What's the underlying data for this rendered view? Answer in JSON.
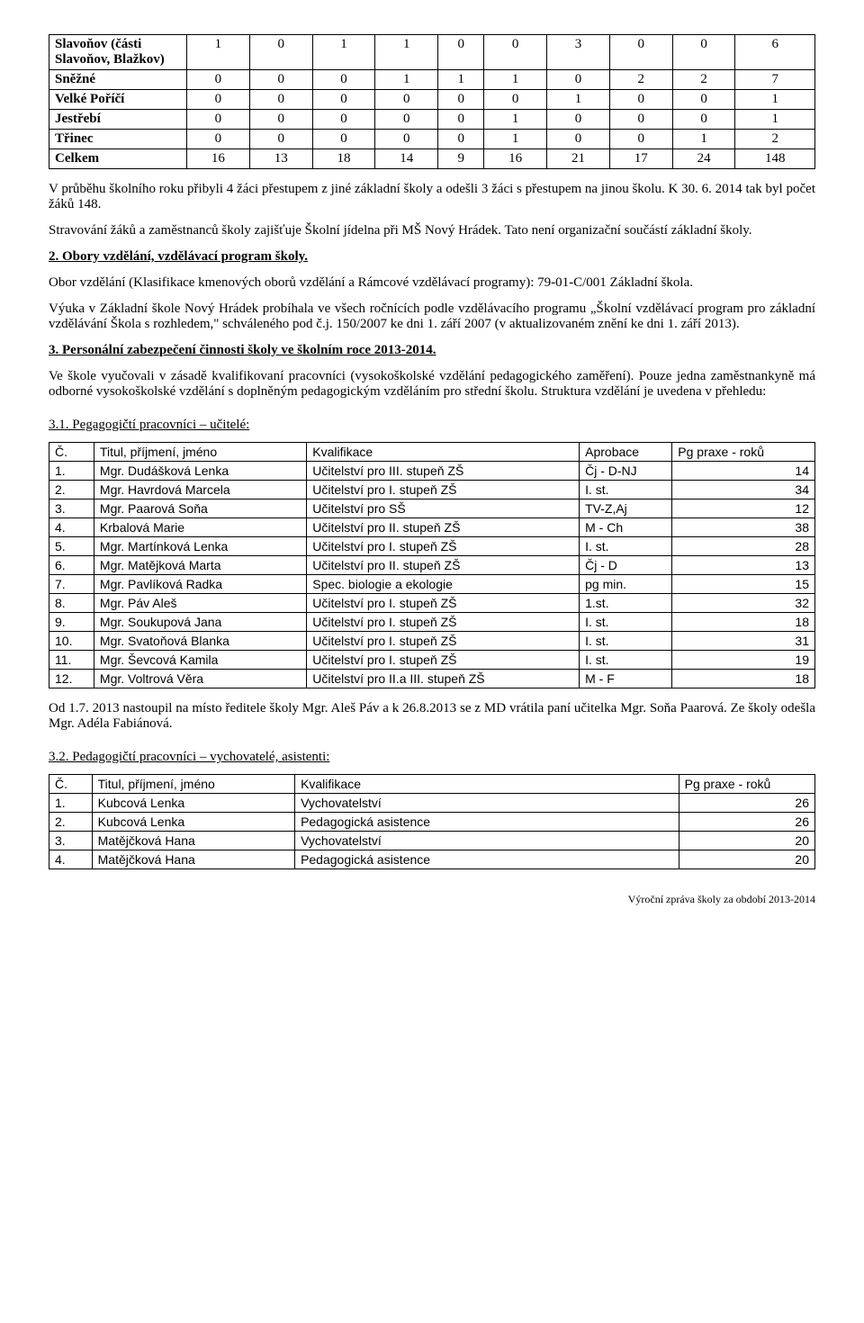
{
  "table1": {
    "rows": [
      {
        "label": "Slavoňov (části\nSlavoňov, Blažkov)",
        "bold": true,
        "vals": [
          1,
          0,
          1,
          1,
          0,
          0,
          3,
          0,
          0,
          6
        ]
      },
      {
        "label": "Sněžné",
        "bold": true,
        "vals": [
          0,
          0,
          0,
          1,
          1,
          1,
          0,
          2,
          2,
          7
        ]
      },
      {
        "label": "Velké Poříčí",
        "bold": true,
        "vals": [
          0,
          0,
          0,
          0,
          0,
          0,
          1,
          0,
          0,
          1
        ]
      },
      {
        "label": "Jestřebí",
        "bold": true,
        "vals": [
          0,
          0,
          0,
          0,
          0,
          1,
          0,
          0,
          0,
          1
        ]
      },
      {
        "label": "Třinec",
        "bold": true,
        "vals": [
          0,
          0,
          0,
          0,
          0,
          1,
          0,
          0,
          1,
          2
        ]
      },
      {
        "label": "Celkem",
        "bold": true,
        "vals": [
          16,
          13,
          18,
          14,
          9,
          16,
          21,
          17,
          24,
          148
        ]
      }
    ]
  },
  "para1": "V průběhu školního roku přibyli 4 žáci přestupem z jiné základní školy a odešli 3 žáci s přestupem na jinou školu.  K 30. 6. 2014 tak byl počet žáků 148.",
  "para2": "Stravování žáků a zaměstnanců školy zajišťuje Školní jídelna při MŠ Nový Hrádek. Tato není organizační součástí základní školy.",
  "heading2": "2. Obory vzdělání, vzdělávací program školy.",
  "para3": "Obor vzdělání (Klasifikace kmenových oborů vzdělání a Rámcové vzdělávací programy): 79-01-C/001 Základní škola.",
  "para4": "Výuka v Základní škole Nový Hrádek probíhala ve všech ročnících podle vzdělávacího programu „Školní vzdělávací program pro základní vzdělávání Škola s rozhledem,\" schváleného pod č.j. 150/2007 ke dni 1. září 2007 (v aktualizovaném  znění ke dni 1. září 2013).",
  "heading3": "3. Personální zabezpečení činnosti školy ve školním roce 2013-2014.",
  "para5": "Ve škole vyučovali v zásadě kvalifikovaní pracovníci (vysokoškolské vzdělání pedagogického zaměření). Pouze jedna zaměstnankyně má odborné vysokoškolské  vzdělání s doplněným pedagogickým vzděláním pro střední školu. Struktura vzdělání je uvedena v přehledu:",
  "sub31": "3.1. Pegagogičtí pracovníci – učitelé:",
  "teachers": {
    "header": [
      "Č.",
      "Titul, příjmení, jméno",
      "Kvalifikace",
      "Aprobace",
      "Pg praxe - roků"
    ],
    "rows": [
      [
        "1.",
        "Mgr. Dudášková Lenka",
        "Učitelství pro III. stupeň ZŠ",
        "Čj - D-NJ",
        14
      ],
      [
        "2.",
        "Mgr. Havrdová Marcela",
        "Učitelství pro I. stupeň ZŠ",
        "I. st.",
        34
      ],
      [
        "3.",
        "Mgr. Paarová Soňa",
        "Učitelství pro SŠ",
        "TV-Z,Aj",
        12
      ],
      [
        "4.",
        "Krbalová Marie",
        "Učitelství pro II. stupeň ZŠ",
        "M - Ch",
        38
      ],
      [
        "5.",
        "Mgr. Martínková Lenka",
        "Učitelství pro I. stupeň ZŠ",
        "I. st.",
        28
      ],
      [
        "6.",
        "Mgr. Matějková Marta",
        "Učitelství pro II. stupeň ZŠ",
        "Čj - D",
        13
      ],
      [
        "7.",
        "Mgr. Pavlíková Radka",
        "Spec. biologie a ekologie",
        "pg min.",
        15
      ],
      [
        "8.",
        "Mgr. Páv Aleš",
        "Učitelství pro I. stupeň ZŠ",
        "1.st.",
        32
      ],
      [
        "9.",
        "Mgr. Soukupová Jana",
        "Učitelství pro I. stupeň ZŠ",
        "I. st.",
        18
      ],
      [
        "10.",
        "Mgr. Svatoňová Blanka",
        "Učitelství pro I. stupeň ZŠ",
        "I. st.",
        31
      ],
      [
        "11.",
        "Mgr. Ševcová Kamila",
        "Učitelství pro I. stupeň ZŠ",
        "I. st.",
        19
      ],
      [
        "12.",
        "Mgr. Voltrová Věra",
        "Učitelství pro II.a III. stupeň ZŠ",
        "M - F",
        18
      ]
    ]
  },
  "para6": "Od 1.7. 2013 nastoupil na místo ředitele školy Mgr. Aleš Páv a k 26.8.2013 se z MD vrátila paní učitelka Mgr. Soňa Paarová. Ze školy odešla Mgr. Adéla Fabiánová.",
  "sub32": "3.2. Pedagogičtí pracovníci – vychovatelé, asistenti:",
  "assistants": {
    "header": [
      "Č.",
      "Titul, příjmení, jméno",
      "Kvalifikace",
      "Pg praxe - roků"
    ],
    "rows": [
      [
        "1.",
        "Kubcová Lenka",
        "Vychovatelství",
        26
      ],
      [
        "2.",
        "Kubcová Lenka",
        "Pedagogická asistence",
        26
      ],
      [
        "3.",
        "Matějčková Hana",
        "Vychovatelství",
        20
      ],
      [
        "4.",
        "Matějčková Hana",
        "Pedagogická asistence",
        20
      ]
    ]
  },
  "footer": "Výroční zpráva školy za období 2013-2014"
}
